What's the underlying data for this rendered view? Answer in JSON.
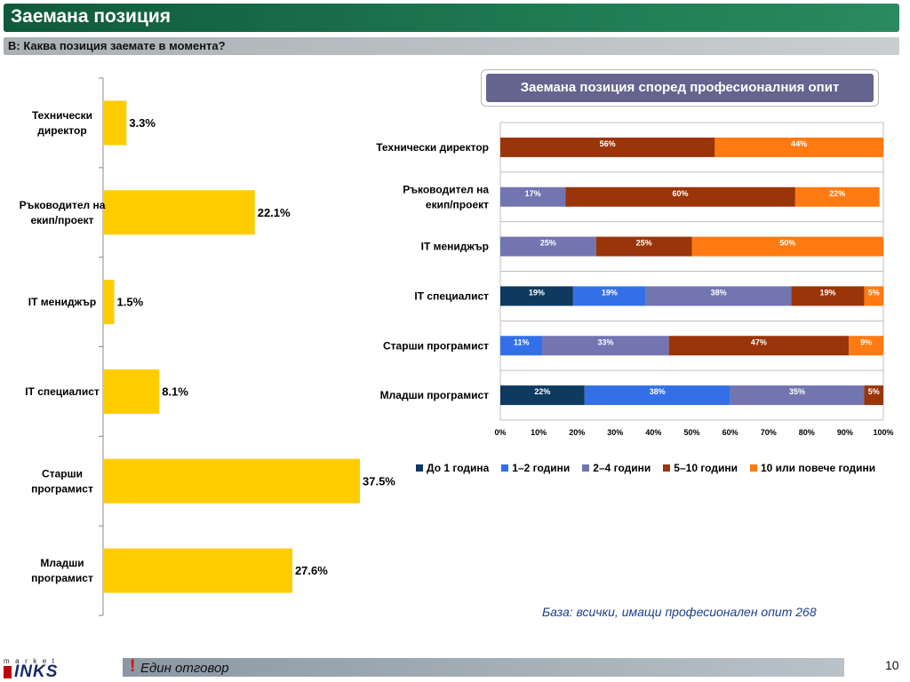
{
  "header": {
    "title": "Заемана позиция",
    "question": "В: Каква позиция заемате в момента?"
  },
  "chart_data": [
    {
      "type": "bar",
      "orientation": "horizontal",
      "title": "",
      "categories": [
        "Технически\nдиректор",
        "Ръководител на\nекип/проект",
        "IT мениджър",
        "IT специалист",
        "Старши\nпрограмист",
        "Младши\nпрограмист"
      ],
      "values": [
        3.3,
        22.1,
        1.5,
        8.1,
        37.5,
        27.6
      ],
      "value_labels": [
        "3.3%",
        "22.1%",
        "1.5%",
        "8.1%",
        "37.5%",
        "27.6%"
      ],
      "xlim": [
        0,
        40
      ],
      "color": "#ffcc00",
      "grid": false
    },
    {
      "type": "bar",
      "orientation": "horizontal",
      "stacked": "percent",
      "title": "Заемана позиция според професионалния опит",
      "categories": [
        "Технически директор",
        "Ръководител на\nекип/проект",
        "IT мениджър",
        "IT специалист",
        "Старши програмист",
        "Младши програмист"
      ],
      "series": [
        {
          "name": "До 1 година",
          "color": "#0e3a5f",
          "values": [
            0,
            0,
            0,
            19,
            0,
            22
          ]
        },
        {
          "name": "1–2 години",
          "color": "#3370e8",
          "values": [
            0,
            0,
            0,
            19,
            11,
            38
          ]
        },
        {
          "name": "2–4 години",
          "color": "#7275b0",
          "values": [
            0,
            17,
            25,
            38,
            33,
            35
          ]
        },
        {
          "name": "5–10 години",
          "color": "#9a3409",
          "values": [
            56,
            60,
            25,
            19,
            47,
            5
          ]
        },
        {
          "name": "10 или повече години",
          "color": "#ff7a10",
          "values": [
            44,
            22,
            50,
            5,
            9,
            0
          ]
        }
      ],
      "xlim": [
        0,
        100
      ],
      "x_ticks": [
        "0%",
        "10%",
        "20%",
        "30%",
        "40%",
        "50%",
        "60%",
        "70%",
        "80%",
        "90%",
        "100%"
      ],
      "grid": true,
      "legend": "bottom"
    }
  ],
  "base_note": "База: всички, имащи професионален опит 268",
  "footer": {
    "mark": "!",
    "note": "Един отговор",
    "page_number": "10"
  },
  "logo": {
    "small_text": "market",
    "big_text": "INKS"
  }
}
